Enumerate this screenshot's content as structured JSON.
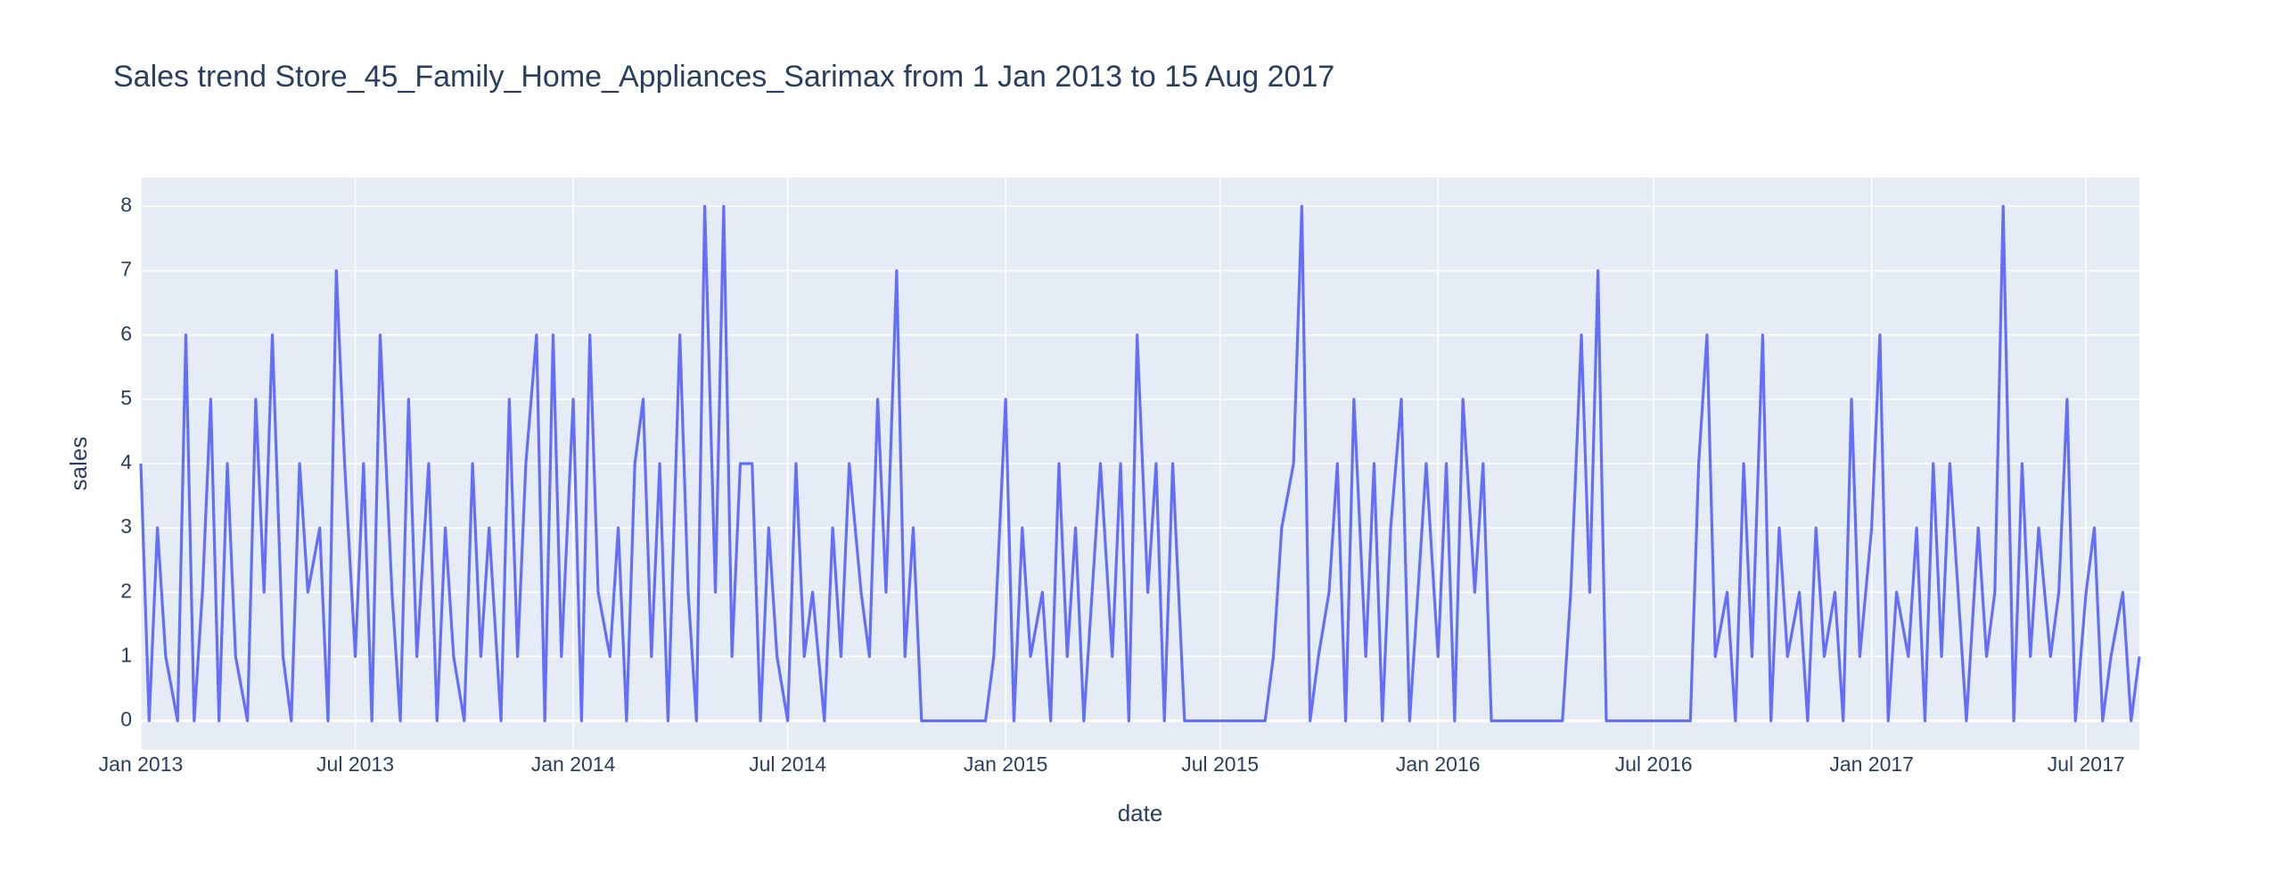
{
  "chart_data": {
    "type": "line",
    "title": "Sales trend Store_45_Family_Home_Appliances_Sarimax from  1 Jan 2013 to 15 Aug 2017",
    "x_label": "date",
    "y_label": "sales",
    "color": "#636efa",
    "grid": true,
    "xlim": [
      "2013-01-01",
      "2017-08-15"
    ],
    "xticks": [
      {
        "value": "2013-01-01",
        "label": "Jan 2013"
      },
      {
        "value": "2013-07-01",
        "label": "Jul 2013"
      },
      {
        "value": "2014-01-01",
        "label": "Jan 2014"
      },
      {
        "value": "2014-07-01",
        "label": "Jul 2014"
      },
      {
        "value": "2015-01-01",
        "label": "Jan 2015"
      },
      {
        "value": "2015-07-01",
        "label": "Jul 2015"
      },
      {
        "value": "2016-01-01",
        "label": "Jan 2016"
      },
      {
        "value": "2016-07-01",
        "label": "Jul 2016"
      },
      {
        "value": "2017-01-01",
        "label": "Jan 2017"
      },
      {
        "value": "2017-07-01",
        "label": "Jul 2017"
      }
    ],
    "ylim": [
      -0.45,
      8.45
    ],
    "yticks": [
      0,
      1,
      2,
      3,
      4,
      5,
      6,
      7,
      8
    ],
    "x": [
      "2013-01-01",
      "2013-01-08",
      "2013-01-15",
      "2013-01-22",
      "2013-02-01",
      "2013-02-08",
      "2013-02-15",
      "2013-02-22",
      "2013-03-01",
      "2013-03-08",
      "2013-03-15",
      "2013-03-22",
      "2013-04-01",
      "2013-04-08",
      "2013-04-15",
      "2013-04-22",
      "2013-05-01",
      "2013-05-08",
      "2013-05-15",
      "2013-05-22",
      "2013-06-01",
      "2013-06-08",
      "2013-06-15",
      "2013-06-22",
      "2013-07-01",
      "2013-07-08",
      "2013-07-15",
      "2013-07-22",
      "2013-08-01",
      "2013-08-08",
      "2013-08-15",
      "2013-08-22",
      "2013-09-01",
      "2013-09-08",
      "2013-09-15",
      "2013-09-22",
      "2013-10-01",
      "2013-10-08",
      "2013-10-15",
      "2013-10-22",
      "2013-11-01",
      "2013-11-08",
      "2013-11-15",
      "2013-11-22",
      "2013-12-01",
      "2013-12-08",
      "2013-12-15",
      "2013-12-22",
      "2014-01-01",
      "2014-01-08",
      "2014-01-15",
      "2014-01-22",
      "2014-02-01",
      "2014-02-08",
      "2014-02-15",
      "2014-02-22",
      "2014-03-01",
      "2014-03-08",
      "2014-03-15",
      "2014-03-22",
      "2014-04-01",
      "2014-04-08",
      "2014-04-15",
      "2014-04-22",
      "2014-05-01",
      "2014-05-08",
      "2014-05-15",
      "2014-05-22",
      "2014-06-01",
      "2014-06-08",
      "2014-06-15",
      "2014-06-22",
      "2014-07-01",
      "2014-07-08",
      "2014-07-15",
      "2014-07-22",
      "2014-08-01",
      "2014-08-08",
      "2014-08-15",
      "2014-08-22",
      "2014-09-01",
      "2014-09-08",
      "2014-09-15",
      "2014-09-22",
      "2014-10-01",
      "2014-10-08",
      "2014-10-15",
      "2014-10-22",
      "2014-11-01",
      "2014-11-08",
      "2014-11-15",
      "2014-11-22",
      "2014-12-01",
      "2014-12-08",
      "2014-12-15",
      "2014-12-22",
      "2015-01-01",
      "2015-01-08",
      "2015-01-15",
      "2015-01-22",
      "2015-02-01",
      "2015-02-08",
      "2015-02-15",
      "2015-02-22",
      "2015-03-01",
      "2015-03-08",
      "2015-03-15",
      "2015-03-22",
      "2015-04-01",
      "2015-04-08",
      "2015-04-15",
      "2015-04-22",
      "2015-05-01",
      "2015-05-08",
      "2015-05-15",
      "2015-05-22",
      "2015-06-01",
      "2015-06-08",
      "2015-06-15",
      "2015-06-22",
      "2015-07-01",
      "2015-07-08",
      "2015-07-15",
      "2015-07-22",
      "2015-08-01",
      "2015-08-08",
      "2015-08-15",
      "2015-08-22",
      "2015-09-01",
      "2015-09-08",
      "2015-09-15",
      "2015-09-22",
      "2015-10-01",
      "2015-10-08",
      "2015-10-15",
      "2015-10-22",
      "2015-11-01",
      "2015-11-08",
      "2015-11-15",
      "2015-11-22",
      "2015-12-01",
      "2015-12-08",
      "2015-12-15",
      "2015-12-22",
      "2016-01-01",
      "2016-01-08",
      "2016-01-15",
      "2016-01-22",
      "2016-02-01",
      "2016-02-08",
      "2016-02-15",
      "2016-02-22",
      "2016-03-01",
      "2016-03-08",
      "2016-03-15",
      "2016-03-22",
      "2016-04-01",
      "2016-04-08",
      "2016-04-15",
      "2016-04-22",
      "2016-05-01",
      "2016-05-08",
      "2016-05-15",
      "2016-05-22",
      "2016-06-01",
      "2016-06-08",
      "2016-06-15",
      "2016-06-22",
      "2016-07-01",
      "2016-07-08",
      "2016-07-15",
      "2016-07-22",
      "2016-08-01",
      "2016-08-08",
      "2016-08-15",
      "2016-08-22",
      "2016-09-01",
      "2016-09-08",
      "2016-09-15",
      "2016-09-22",
      "2016-10-01",
      "2016-10-08",
      "2016-10-15",
      "2016-10-22",
      "2016-11-01",
      "2016-11-08",
      "2016-11-15",
      "2016-11-22",
      "2016-12-01",
      "2016-12-08",
      "2016-12-15",
      "2016-12-22",
      "2017-01-01",
      "2017-01-08",
      "2017-01-15",
      "2017-01-22",
      "2017-02-01",
      "2017-02-08",
      "2017-02-15",
      "2017-02-22",
      "2017-03-01",
      "2017-03-08",
      "2017-03-15",
      "2017-03-22",
      "2017-04-01",
      "2017-04-08",
      "2017-04-15",
      "2017-04-22",
      "2017-05-01",
      "2017-05-08",
      "2017-05-15",
      "2017-05-22",
      "2017-06-01",
      "2017-06-08",
      "2017-06-15",
      "2017-06-22",
      "2017-07-01",
      "2017-07-08",
      "2017-07-15",
      "2017-07-22",
      "2017-08-01",
      "2017-08-08",
      "2017-08-15"
    ],
    "values": [
      4,
      0,
      3,
      1,
      0,
      6,
      0,
      2,
      5,
      0,
      4,
      1,
      0,
      5,
      2,
      6,
      1,
      0,
      4,
      2,
      3,
      0,
      7,
      4,
      1,
      4,
      0,
      6,
      2,
      0,
      5,
      1,
      4,
      0,
      3,
      1,
      0,
      4,
      1,
      3,
      0,
      5,
      1,
      4,
      6,
      0,
      6,
      1,
      5,
      0,
      6,
      2,
      1,
      3,
      0,
      4,
      5,
      1,
      4,
      0,
      6,
      2,
      0,
      8,
      2,
      8,
      1,
      4,
      4,
      0,
      3,
      1,
      0,
      4,
      1,
      2,
      0,
      3,
      1,
      4,
      2,
      1,
      5,
      2,
      7,
      1,
      3,
      0,
      0,
      0,
      0,
      0,
      0,
      0,
      0,
      1,
      5,
      0,
      3,
      1,
      2,
      0,
      4,
      1,
      3,
      0,
      2,
      4,
      1,
      4,
      0,
      6,
      2,
      4,
      0,
      4,
      0,
      0,
      0,
      0,
      0,
      0,
      0,
      0,
      0,
      0,
      1,
      3,
      4,
      8,
      0,
      1,
      2,
      4,
      0,
      5,
      1,
      4,
      0,
      3,
      5,
      0,
      2,
      4,
      1,
      4,
      0,
      5,
      2,
      4,
      0,
      0,
      0,
      0,
      0,
      0,
      0,
      0,
      0,
      2,
      6,
      2,
      7,
      0,
      0,
      0,
      0,
      0,
      0,
      0,
      0,
      0,
      0,
      4,
      6,
      1,
      2,
      0,
      4,
      1,
      6,
      0,
      3,
      1,
      2,
      0,
      3,
      1,
      2,
      0,
      5,
      1,
      3,
      6,
      0,
      2,
      1,
      3,
      0,
      4,
      1,
      4,
      2,
      0,
      3,
      1,
      2,
      8,
      0,
      4,
      1,
      3,
      1,
      2,
      5,
      0,
      2,
      3,
      0,
      1,
      2,
      0,
      1
    ]
  }
}
